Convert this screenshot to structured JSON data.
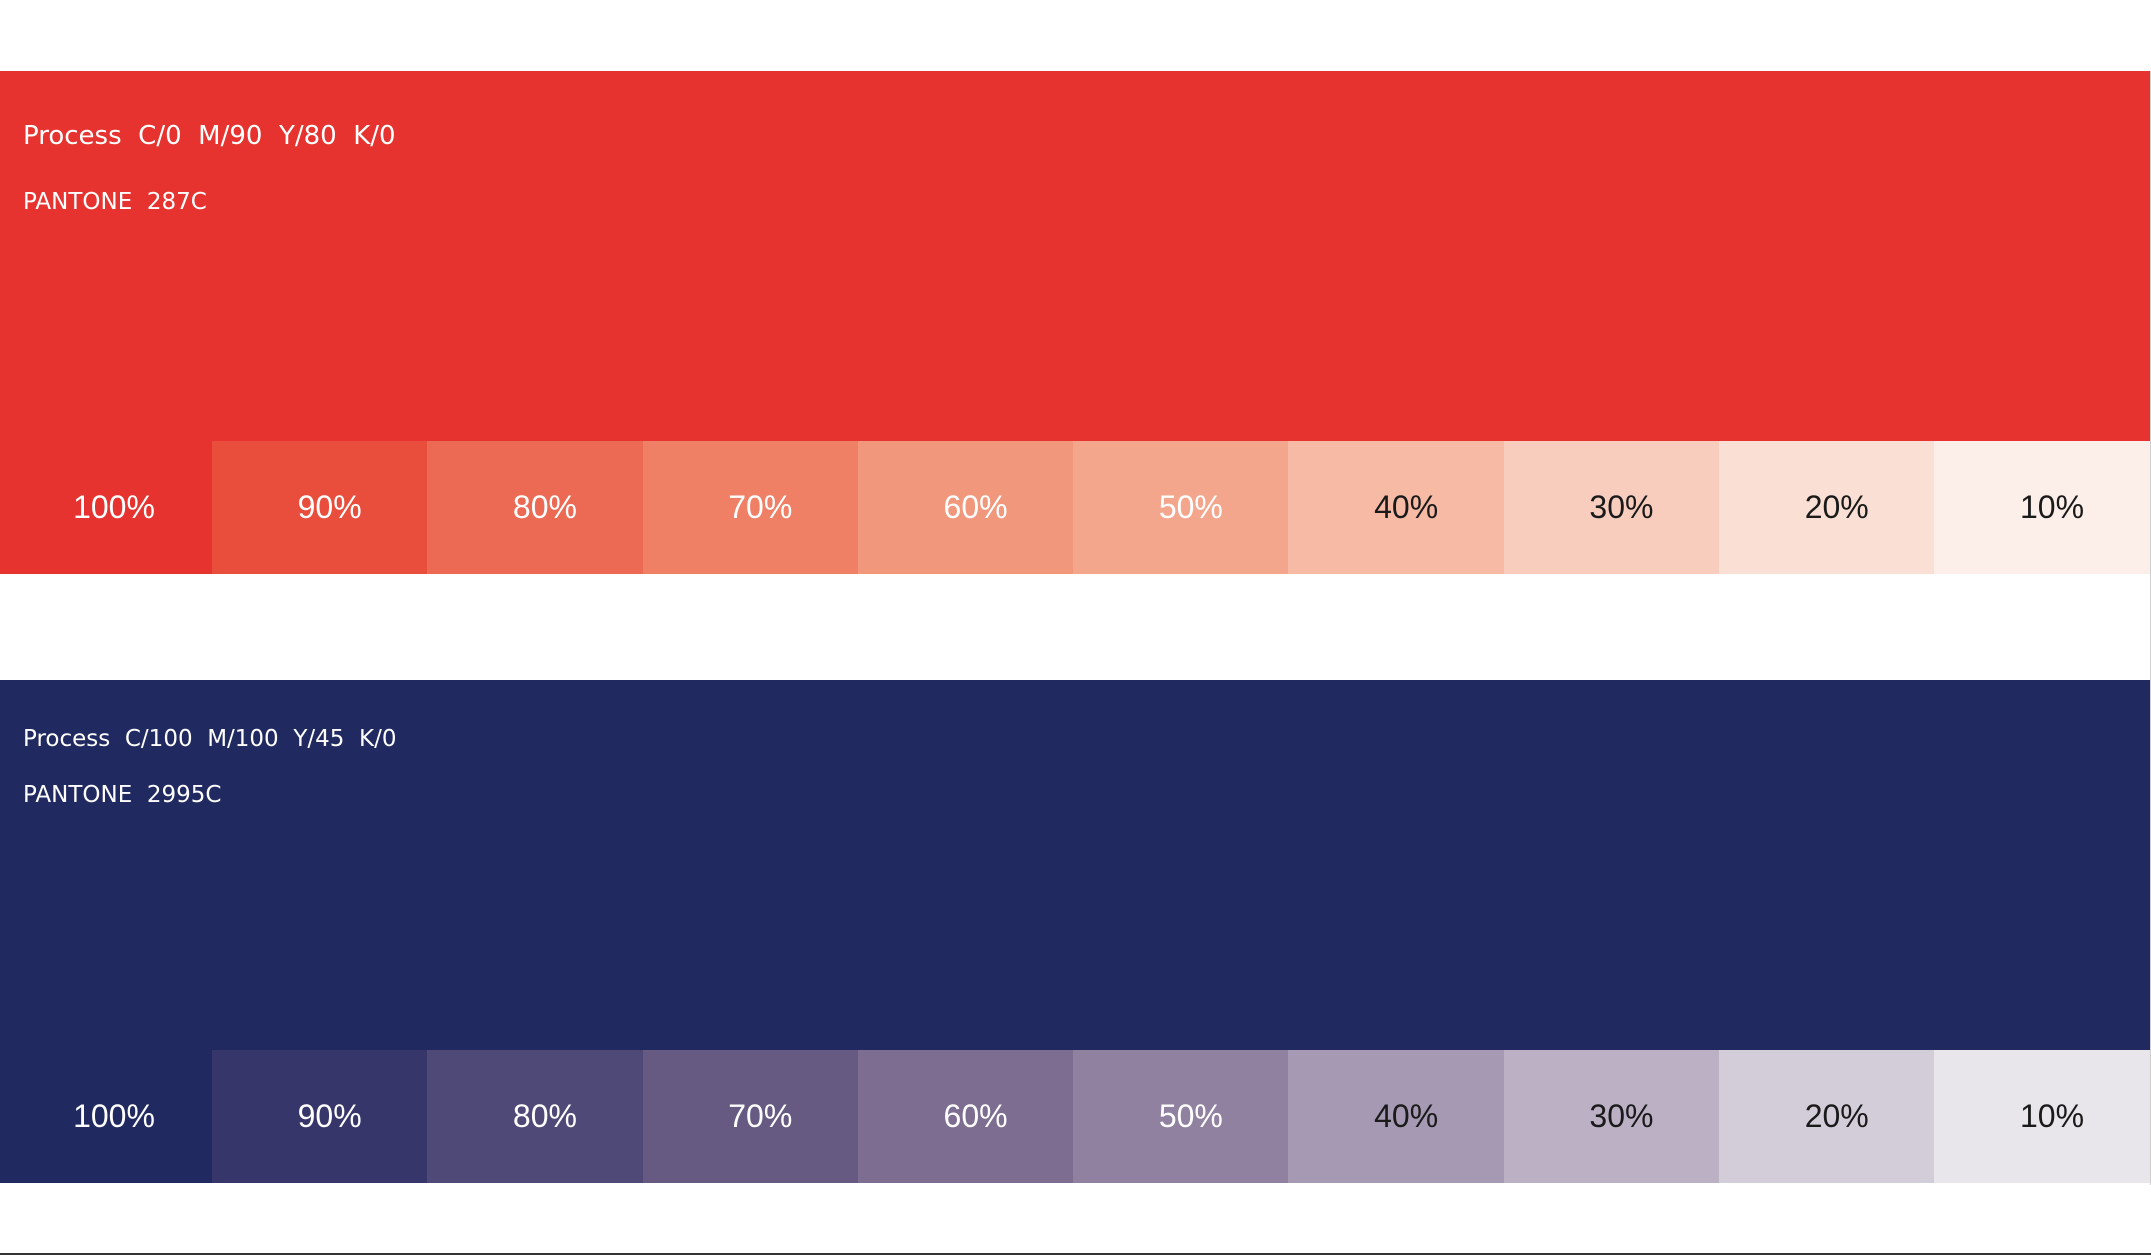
{
  "palettes": [
    {
      "id": "red",
      "process": "Process  C/0  M/90  Y/80  K/0",
      "pantone": "PANTONE  287C",
      "base_color": "#e6332f",
      "tints": [
        {
          "label": "100%",
          "color": "#e6332f"
        },
        {
          "label": "90%",
          "color": "#e94d3c"
        },
        {
          "label": "80%",
          "color": "#ec6a53"
        },
        {
          "label": "70%",
          "color": "#ef8066"
        },
        {
          "label": "60%",
          "color": "#f1977c"
        },
        {
          "label": "50%",
          "color": "#f4a68d"
        },
        {
          "label": "40%",
          "color": "#f6baa5"
        },
        {
          "label": "30%",
          "color": "#f8cdbe"
        },
        {
          "label": "20%",
          "color": "#fadfd5"
        },
        {
          "label": "10%",
          "color": "#fcefe9"
        }
      ]
    },
    {
      "id": "blue",
      "process": "Process  C/100  M/100  Y/45  K/0",
      "pantone": "PANTONE  2995C",
      "base_color": "#212a60",
      "tints": [
        {
          "label": "100%",
          "color": "#212a60"
        },
        {
          "label": "90%",
          "color": "#37366a"
        },
        {
          "label": "80%",
          "color": "#4f4978"
        },
        {
          "label": "70%",
          "color": "#665a83"
        },
        {
          "label": "60%",
          "color": "#7d6e91"
        },
        {
          "label": "50%",
          "color": "#9181a1"
        },
        {
          "label": "40%",
          "color": "#a699b3"
        },
        {
          "label": "30%",
          "color": "#bcb0c5"
        },
        {
          "label": "20%",
          "color": "#d3cdda"
        },
        {
          "label": "10%",
          "color": "#e8e5eb"
        }
      ]
    }
  ]
}
